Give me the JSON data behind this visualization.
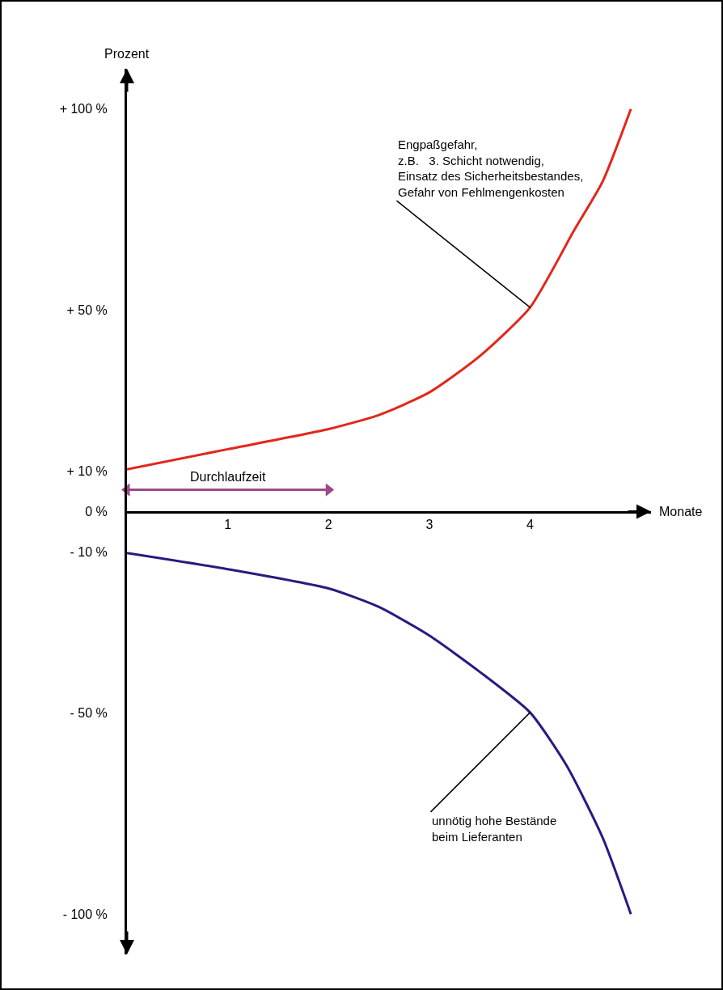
{
  "chart_data": {
    "type": "line",
    "xlabel": "Monate",
    "ylabel": "Prozent",
    "xlim": [
      0,
      5.2
    ],
    "xticks": [
      1,
      2,
      3,
      4
    ],
    "ylim": [
      -110,
      110
    ],
    "yticks": [
      {
        "value": 100,
        "label": "+ 100 %"
      },
      {
        "value": 50,
        "label": "+ 50 %"
      },
      {
        "value": 10,
        "label": "+ 10 %"
      },
      {
        "value": 0,
        "label": "0 %"
      },
      {
        "value": -10,
        "label": "- 10 %"
      },
      {
        "value": -50,
        "label": "- 50 %"
      },
      {
        "value": -100,
        "label": "- 100 %"
      }
    ],
    "series": [
      {
        "color": "#e3261b",
        "x": [
          0,
          1,
          2,
          2.5,
          3,
          3.5,
          4,
          4.44,
          4.72,
          5
        ],
        "values": [
          10.5,
          15.5,
          20.5,
          24,
          29.6,
          38.6,
          50.7,
          70,
          82,
          100
        ]
      },
      {
        "color": "#2a1a80",
        "x": [
          0,
          1,
          2,
          2.5,
          3,
          3.5,
          4,
          4.36,
          4.72,
          5
        ],
        "values": [
          -10.3,
          -14.3,
          -19.1,
          -23.7,
          -30.8,
          -39.8,
          -49.9,
          -63,
          -81,
          -100
        ]
      },
      {
        "name": "Durchlaufzeit",
        "color": "#9c4a88",
        "marker": "triangle",
        "x": [
          0,
          2
        ],
        "values": [
          5.4,
          5.4
        ]
      }
    ],
    "annotations": [
      {
        "text": "Engpaßgefahr,\nz.B.   3. Schicht notwendig,\nEinsatz des Sicherheitsbestandes,\nGefahr von Fehlmengenkosten",
        "x": 4,
        "y": 50.7
      },
      {
        "text": "unnötig hohe Bestände\nbeim Lieferanten",
        "x": 4,
        "y": -49.9
      }
    ]
  }
}
